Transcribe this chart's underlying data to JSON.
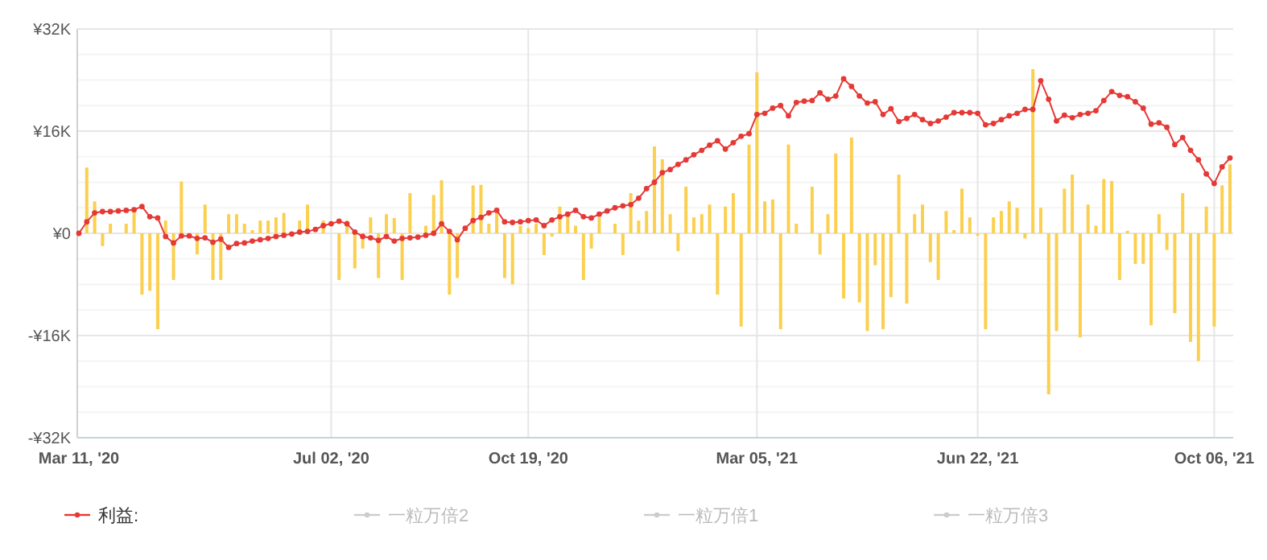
{
  "chart_data": {
    "type": "bar",
    "categories": [
      "Mar 11, '20",
      null,
      null,
      null,
      null,
      null,
      null,
      null,
      null,
      null,
      null,
      null,
      null,
      null,
      null,
      null,
      null,
      null,
      null,
      null,
      null,
      null,
      null,
      null,
      null,
      null,
      null,
      null,
      null,
      null,
      null,
      null,
      "Jul 02, '20",
      null,
      null,
      null,
      null,
      null,
      null,
      null,
      null,
      null,
      null,
      null,
      null,
      null,
      null,
      null,
      null,
      null,
      null,
      null,
      null,
      null,
      null,
      null,
      null,
      "Oct 19, '20",
      null,
      null,
      null,
      null,
      null,
      null,
      null,
      null,
      null,
      null,
      null,
      null,
      null,
      null,
      null,
      null,
      null,
      null,
      null,
      null,
      null,
      null,
      null,
      null,
      null,
      null,
      null,
      null,
      "Mar 05, '21",
      null,
      null,
      null,
      null,
      null,
      null,
      null,
      null,
      null,
      null,
      null,
      null,
      null,
      null,
      null,
      null,
      null,
      null,
      null,
      null,
      null,
      null,
      null,
      null,
      null,
      null,
      null,
      "Jun 22, '21",
      null,
      null,
      null,
      null,
      null,
      null,
      null,
      null,
      null,
      null,
      null,
      null,
      null,
      null,
      null,
      null,
      null,
      null,
      null,
      null,
      null,
      null,
      null,
      null,
      null,
      null,
      null,
      null,
      null,
      "Oct 06, '21",
      null,
      null
    ],
    "series": [
      {
        "color": "#fbcf4f",
        "values": [
          0,
          10.3,
          5,
          -2,
          1.5,
          0,
          1.5,
          4,
          -9.6,
          -9,
          -15,
          2,
          -7.3,
          8.1,
          0,
          -3.3,
          4.5,
          -7.3,
          -7.3,
          3,
          3,
          1.5,
          0.5,
          2,
          2,
          2.5,
          3.2,
          0,
          2,
          4.5,
          0,
          2,
          0,
          -7.3,
          2,
          -5.5,
          -2.4,
          2.5,
          -7,
          3,
          2.4,
          -7.3,
          6.3,
          0,
          1.2,
          6,
          8.3,
          -9.6,
          -7,
          0,
          7.5,
          7.6,
          1.5,
          3.2,
          -7,
          -8,
          1.2,
          0.8,
          1.5,
          -3.4,
          -0.5,
          4.2,
          3,
          1.2,
          -7.3,
          -2.4,
          2.5,
          0,
          1.5,
          -3.4,
          6.3,
          2,
          3.5,
          13.6,
          11.6,
          3,
          -2.8,
          7.3,
          2.5,
          3,
          4.5,
          -9.6,
          4.2,
          6.3,
          -14.6,
          13.9,
          25.2,
          5,
          5.3,
          -15,
          13.9,
          1.5,
          0,
          7.3,
          -3.3,
          3,
          12.5,
          -10.2,
          15,
          -10.8,
          -15.3,
          -5,
          -15,
          -10,
          9.2,
          -11,
          3,
          4.5,
          -4.5,
          -7.3,
          3.5,
          0.5,
          7,
          2.5,
          -0.4,
          -15,
          2.5,
          3.5,
          5,
          4,
          -0.8,
          25.7,
          4,
          -25.2,
          -15.3,
          7,
          9.2,
          -16.3,
          4.5,
          1.2,
          8.5,
          8.2,
          -7.3,
          0.4,
          -4.8,
          -4.8,
          -14.4,
          3,
          -2.6,
          -12.5,
          6.3,
          -17,
          -20,
          4.2,
          -14.6,
          7.5,
          10.8
        ]
      },
      {
        "type": "line",
        "name": "利益:",
        "color": "#e53935",
        "values": [
          0,
          1.8,
          3.2,
          3.4,
          3.4,
          3.5,
          3.6,
          3.7,
          4.2,
          2.6,
          2.4,
          -0.5,
          -1.5,
          -0.4,
          -0.4,
          -0.8,
          -0.7,
          -1.4,
          -0.9,
          -2.2,
          -1.6,
          -1.5,
          -1.2,
          -1,
          -0.8,
          -0.5,
          -0.3,
          -0.1,
          0.2,
          0.3,
          0.6,
          1.2,
          1.5,
          1.9,
          1.5,
          0.2,
          -0.5,
          -0.7,
          -1.1,
          -0.5,
          -1.2,
          -0.8,
          -0.7,
          -0.6,
          -0.3,
          0,
          1.5,
          0.3,
          -1,
          0.8,
          2,
          2.5,
          3.2,
          3.6,
          1.8,
          1.7,
          1.8,
          2,
          2.1,
          1.2,
          2.1,
          2.6,
          3,
          3.6,
          2.6,
          2.4,
          3,
          3.5,
          4,
          4.3,
          4.5,
          5.5,
          7,
          8,
          9.5,
          10,
          10.8,
          11.5,
          12.3,
          13,
          13.8,
          14.5,
          13.2,
          14.2,
          15.2,
          15.6,
          18.6,
          18.8,
          19.6,
          20,
          18.4,
          20.5,
          20.7,
          20.8,
          22,
          21,
          21.5,
          24.2,
          23,
          21.5,
          20.4,
          20.6,
          18.6,
          19.5,
          17.5,
          18,
          18.6,
          17.8,
          17.2,
          17.6,
          18.2,
          18.9,
          18.9,
          18.9,
          18.8,
          17,
          17.2,
          17.8,
          18.4,
          18.8,
          19.4,
          19.4,
          23.9,
          21,
          17.6,
          18.5,
          18.1,
          18.6,
          18.8,
          19.2,
          20.8,
          22.2,
          21.6,
          21.4,
          20.6,
          19.6,
          17.1,
          17.3,
          16.6,
          13.9,
          15,
          13,
          11.5,
          9.3,
          7.8,
          10.4,
          11.8
        ]
      },
      {
        "type": "line",
        "name": "一粒万倍2",
        "color": "#cccccc",
        "values": [
          null,
          null,
          null,
          null,
          null,
          null,
          null,
          null,
          null,
          null,
          null,
          null,
          null,
          null,
          null,
          null,
          null,
          null,
          null,
          null,
          null,
          null,
          null,
          null,
          null,
          null,
          null,
          null,
          null,
          null,
          null,
          null,
          null,
          null,
          null,
          null,
          null,
          null,
          null,
          null,
          null,
          null,
          null,
          null,
          null,
          null,
          null,
          null,
          null,
          null,
          null,
          null,
          null,
          null,
          null,
          null,
          null,
          null,
          null,
          null,
          null,
          null,
          null,
          null,
          null,
          null,
          null,
          null,
          null,
          null,
          null,
          null,
          null,
          null,
          null,
          null,
          null,
          null,
          null,
          null,
          null,
          null,
          null,
          null,
          null,
          null,
          null,
          null,
          null,
          null,
          null,
          null,
          null,
          null,
          null,
          null,
          null,
          null,
          null,
          null,
          null,
          null,
          null,
          null,
          null,
          null,
          null,
          null,
          null,
          null,
          null,
          null,
          null,
          null,
          null,
          null,
          null,
          null,
          null,
          null,
          null,
          null,
          null,
          null,
          null,
          null,
          null,
          null,
          null,
          null,
          null,
          null,
          null,
          null,
          null,
          null,
          null,
          null,
          null,
          null,
          null,
          null,
          null,
          null,
          null,
          null,
          null
        ]
      },
      {
        "type": "line",
        "name": "一粒万倍1",
        "color": "#cccccc",
        "values": [
          null,
          null,
          null,
          null,
          null,
          null,
          null,
          null,
          null,
          null,
          null,
          null,
          null,
          null,
          null,
          null,
          null,
          null,
          null,
          null,
          null,
          null,
          null,
          null,
          null,
          null,
          null,
          null,
          null,
          null,
          null,
          null,
          null,
          null,
          null,
          null,
          null,
          null,
          null,
          null,
          null,
          null,
          null,
          null,
          null,
          null,
          null,
          null,
          null,
          null,
          null,
          null,
          null,
          null,
          null,
          null,
          null,
          null,
          null,
          null,
          null,
          null,
          null,
          null,
          null,
          null,
          null,
          null,
          null,
          null,
          null,
          null,
          null,
          null,
          null,
          null,
          null,
          null,
          null,
          null,
          null,
          null,
          null,
          null,
          null,
          null,
          null,
          null,
          null,
          null,
          null,
          null,
          null,
          null,
          null,
          null,
          null,
          null,
          null,
          null,
          null,
          null,
          null,
          null,
          null,
          null,
          null,
          null,
          null,
          null,
          null,
          null,
          null,
          null,
          null,
          null,
          null,
          null,
          null,
          null,
          null,
          null,
          null,
          null,
          null,
          null,
          null,
          null,
          null,
          null,
          null,
          null,
          null,
          null,
          null,
          null,
          null,
          null,
          null,
          null,
          null,
          null,
          null,
          null,
          null,
          null,
          null
        ]
      },
      {
        "type": "line",
        "name": "一粒万倍3",
        "color": "#cccccc",
        "values": [
          null,
          null,
          null,
          null,
          null,
          null,
          null,
          null,
          null,
          null,
          null,
          null,
          null,
          null,
          null,
          null,
          null,
          null,
          null,
          null,
          null,
          null,
          null,
          null,
          null,
          null,
          null,
          null,
          null,
          null,
          null,
          null,
          null,
          null,
          null,
          null,
          null,
          null,
          null,
          null,
          null,
          null,
          null,
          null,
          null,
          null,
          null,
          null,
          null,
          null,
          null,
          null,
          null,
          null,
          null,
          null,
          null,
          null,
          null,
          null,
          null,
          null,
          null,
          null,
          null,
          null,
          null,
          null,
          null,
          null,
          null,
          null,
          null,
          null,
          null,
          null,
          null,
          null,
          null,
          null,
          null,
          null,
          null,
          null,
          null,
          null,
          null,
          null,
          null,
          null,
          null,
          null,
          null,
          null,
          null,
          null,
          null,
          null,
          null,
          null,
          null,
          null,
          null,
          null,
          null,
          null,
          null,
          null,
          null,
          null,
          null,
          null,
          null,
          null,
          null,
          null,
          null,
          null,
          null,
          null,
          null,
          null,
          null,
          null,
          null,
          null,
          null,
          null,
          null,
          null,
          null,
          null,
          null,
          null,
          null,
          null,
          null,
          null,
          null,
          null,
          null,
          null,
          null,
          null,
          null,
          null,
          null
        ]
      }
    ],
    "ylim": [
      -32,
      32
    ],
    "yticks": [
      {
        "value": -32,
        "label": "-¥32K"
      },
      {
        "value": -28,
        "label": null
      },
      {
        "value": -24,
        "label": null
      },
      {
        "value": -20,
        "label": null
      },
      {
        "value": -16,
        "label": "-¥16K"
      },
      {
        "value": -12,
        "label": null
      },
      {
        "value": -8,
        "label": null
      },
      {
        "value": -4,
        "label": null
      },
      {
        "value": 0,
        "label": "¥0"
      },
      {
        "value": 4,
        "label": null
      },
      {
        "value": 8,
        "label": null
      },
      {
        "value": 12,
        "label": null
      },
      {
        "value": 16,
        "label": "¥16K"
      },
      {
        "value": 20,
        "label": null
      },
      {
        "value": 24,
        "label": null
      },
      {
        "value": 28,
        "label": null
      },
      {
        "value": 32,
        "label": "¥32K"
      }
    ],
    "grid": true,
    "legend": "bottom",
    "marker": "circle",
    "line_style": "solid"
  }
}
